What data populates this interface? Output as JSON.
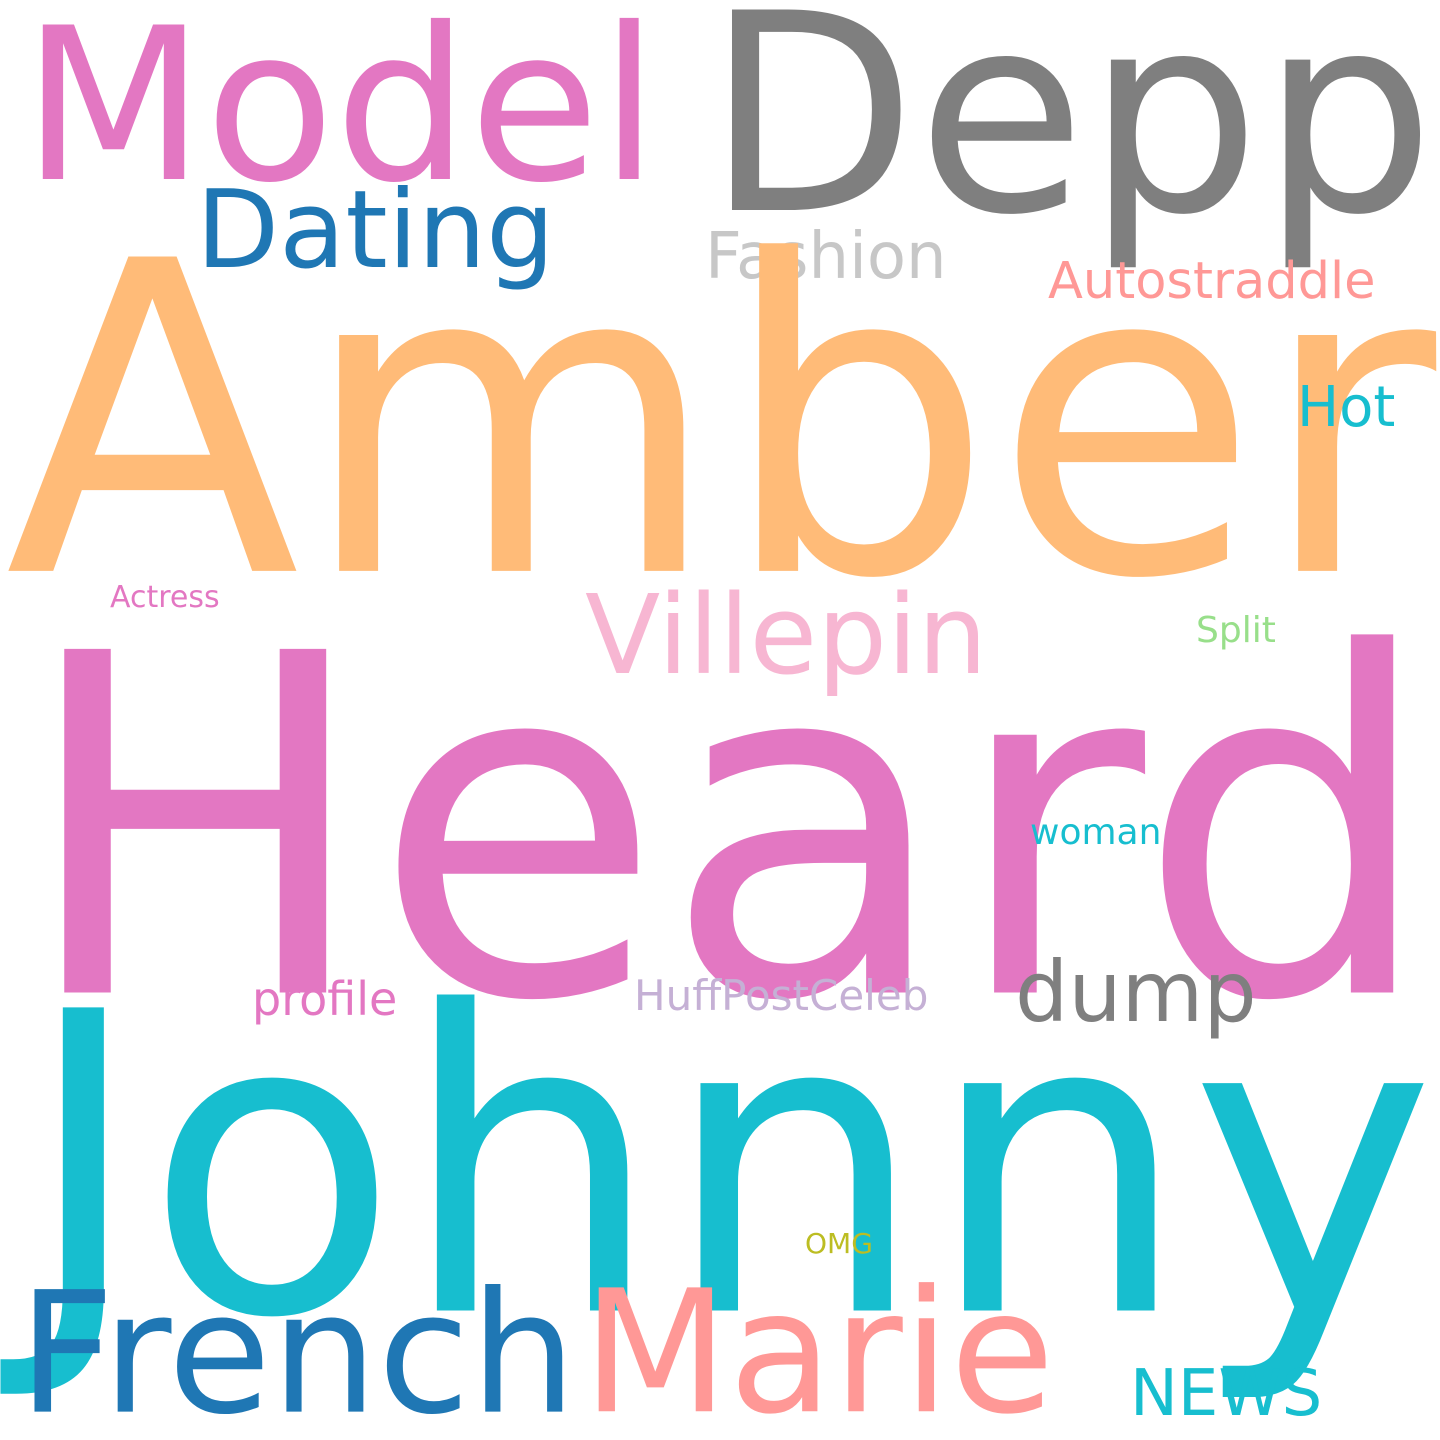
{
  "words": {
    "amber": {
      "text": "Amber",
      "color": "#ffbb78"
    },
    "heard": {
      "text": "Heard",
      "color": "#e377c2"
    },
    "johnny": {
      "text": "Johnny",
      "color": "#17becf"
    },
    "depp": {
      "text": "Depp",
      "color": "#7f7f7f"
    },
    "model": {
      "text": "Model",
      "color": "#e377c2"
    },
    "french": {
      "text": "French",
      "color": "#1f77b4"
    },
    "marie": {
      "text": "Marie",
      "color": "#ff9896"
    },
    "dating": {
      "text": "Dating",
      "color": "#1f77b4"
    },
    "villepin": {
      "text": "Villepin",
      "color": "#f7b6d2"
    },
    "fashion": {
      "text": "Fashion",
      "color": "#c7c7c7"
    },
    "autostraddle": {
      "text": "Autostraddle",
      "color": "#ff9896"
    },
    "hot": {
      "text": "Hot",
      "color": "#17becf"
    },
    "dump": {
      "text": "dump",
      "color": "#7f7f7f"
    },
    "profile": {
      "text": "profile",
      "color": "#e377c2"
    },
    "huffpostceleb": {
      "text": "HuffPostCeleb",
      "color": "#c5b0d5"
    },
    "news": {
      "text": "NEWS",
      "color": "#17becf"
    },
    "split": {
      "text": "Split",
      "color": "#98df8a"
    },
    "woman": {
      "text": "woman",
      "color": "#17becf"
    },
    "actress": {
      "text": "Actress",
      "color": "#e377c2"
    },
    "omg": {
      "text": "OMG",
      "color": "#bcbd22"
    }
  }
}
